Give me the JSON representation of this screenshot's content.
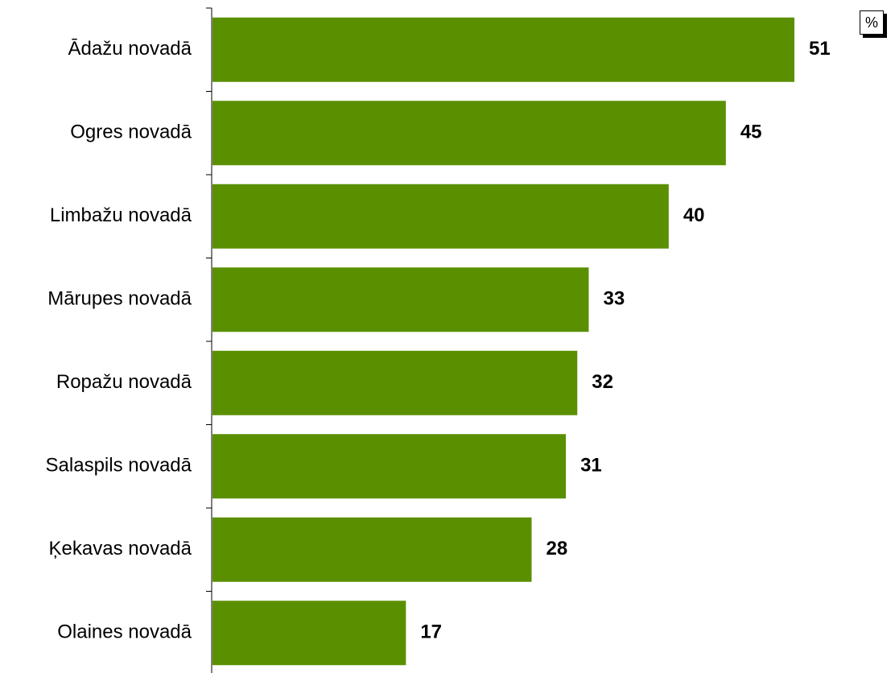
{
  "chart_data": {
    "type": "bar",
    "orientation": "horizontal",
    "categories": [
      "Ādažu novadā",
      "Ogres novadā",
      "Limbažu novadā",
      "Mārupes novadā",
      "Ropažu novadā",
      "Salaspils novadā",
      "Ķekavas novadā",
      "Olaines novadā"
    ],
    "values": [
      51,
      45,
      40,
      33,
      32,
      31,
      28,
      17
    ],
    "unit_label": "%",
    "xlim": [
      0,
      51
    ],
    "grid": false,
    "data_labels": true,
    "bar_color": "#5a8f00"
  }
}
